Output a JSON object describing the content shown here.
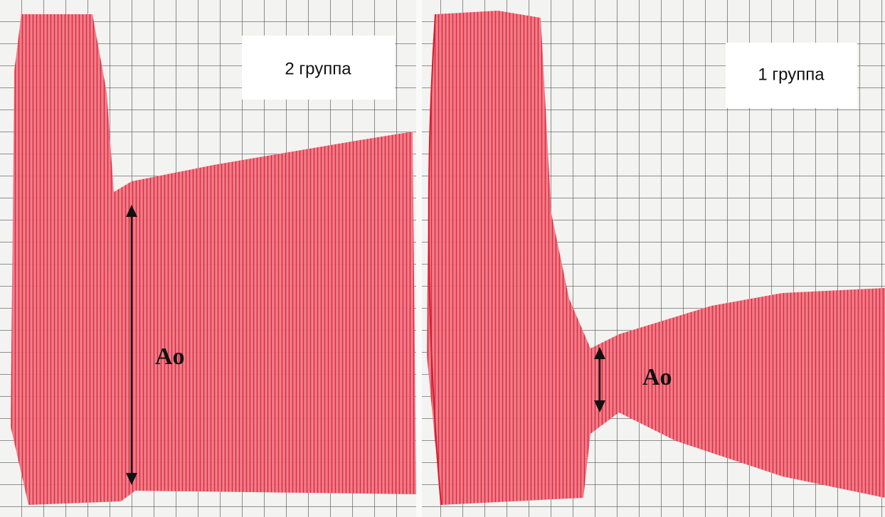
{
  "panels": [
    {
      "label": "2 группа",
      "marker": "Ao"
    },
    {
      "label": "1 группа",
      "marker": "Ao"
    }
  ]
}
